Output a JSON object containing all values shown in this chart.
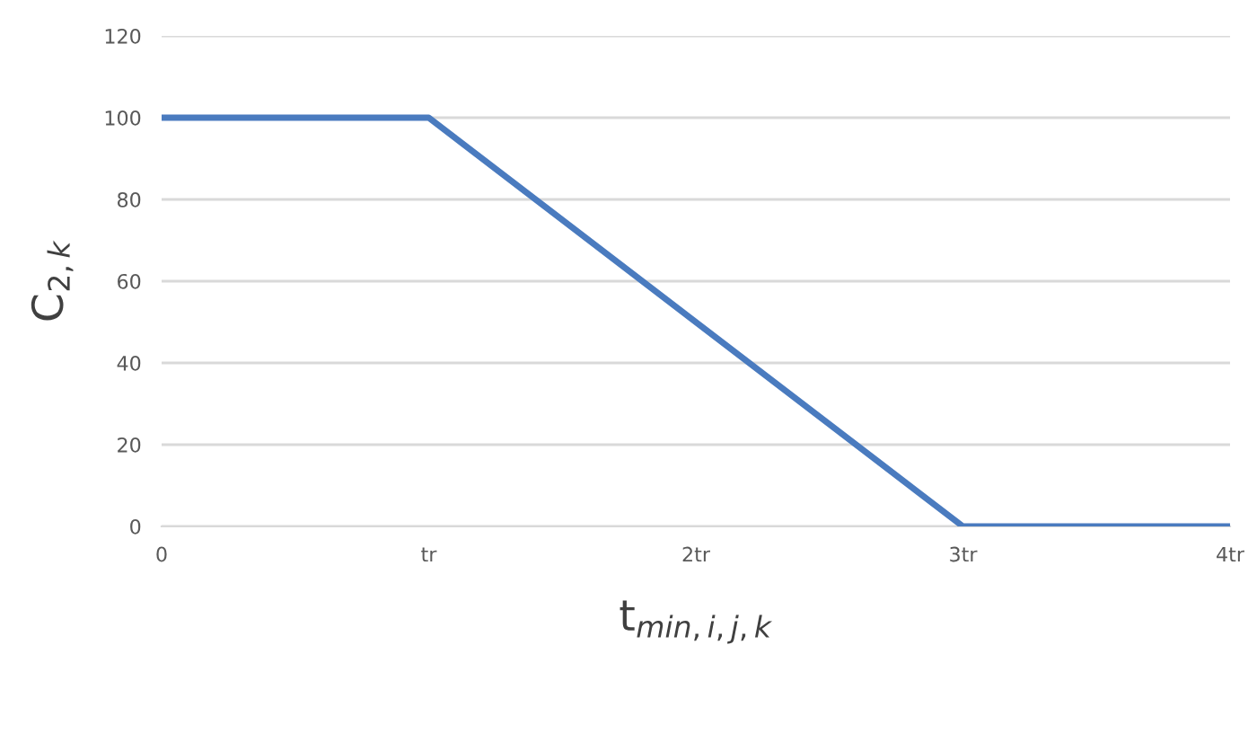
{
  "chart_data": {
    "type": "line",
    "xlabel": "t$_{min,i,j,k}$",
    "ylabel": "C$_{2,k}$",
    "x": [
      0,
      1,
      3,
      4
    ],
    "series": [
      {
        "color": "#4a7bbf",
        "values": [
          100,
          100,
          0,
          0
        ]
      }
    ],
    "xlim": [
      0,
      4
    ],
    "xticks": [
      0,
      {
        "value": 1,
        "label": "tr"
      },
      {
        "value": 2,
        "label": "2tr"
      },
      {
        "value": 3,
        "label": "3tr"
      },
      {
        "value": 4,
        "label": "4tr"
      }
    ],
    "ylim": [
      0,
      120
    ],
    "yticks": [
      0,
      20,
      40,
      60,
      80,
      100,
      120
    ],
    "grid": "y",
    "marker": "none",
    "line_style": "solid"
  }
}
